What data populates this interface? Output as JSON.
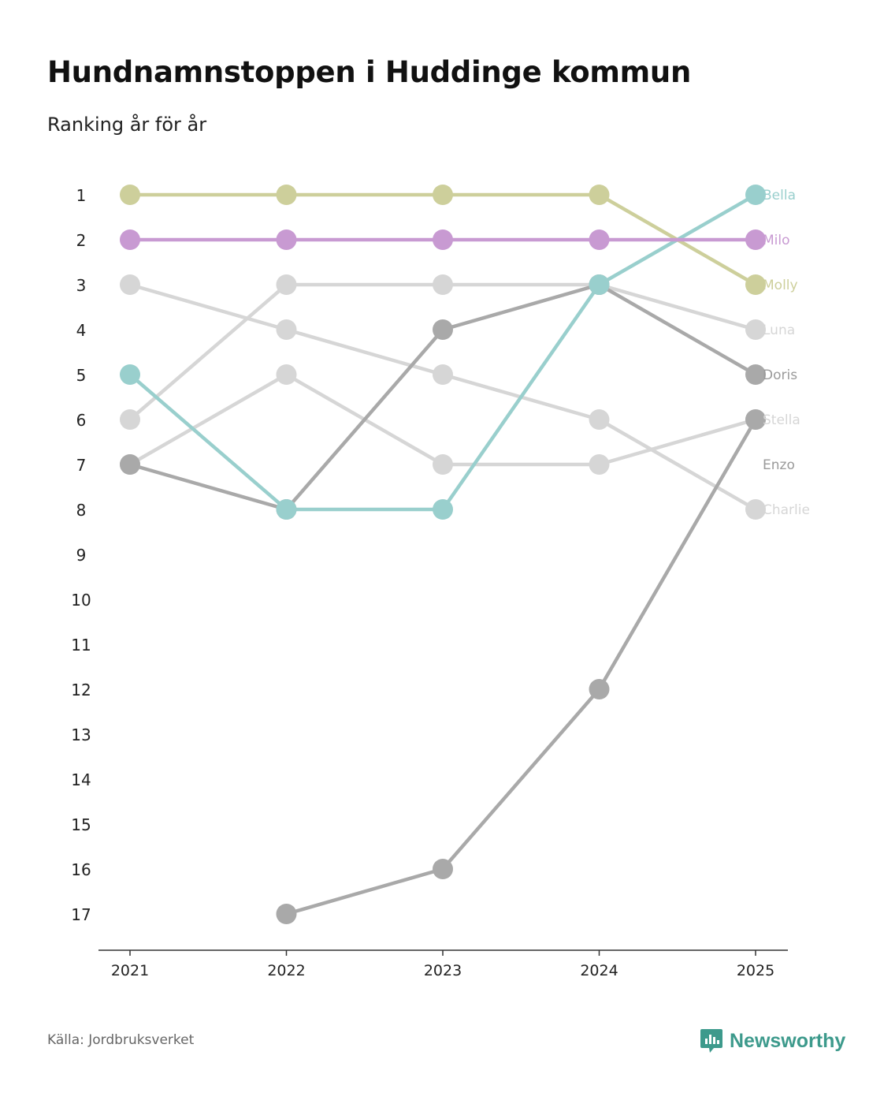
{
  "title": "Hundnamnstoppen i Huddinge kommun",
  "subtitle": "Ranking år för år",
  "source": "Källa: Jordbruksverket",
  "brand": {
    "name": "Newsworthy",
    "icon": "newsworthy-logo-icon",
    "color": "#3d9a8c"
  },
  "chart_data": {
    "type": "line",
    "subtype": "bump",
    "title": "Hundnamnstoppen i Huddinge kommun",
    "subtitle": "Ranking år för år",
    "x": [
      "2021",
      "2022",
      "2023",
      "2024",
      "2025"
    ],
    "y_ticks": [
      "1",
      "2",
      "3",
      "4",
      "5",
      "6",
      "7",
      "8",
      "9",
      "10",
      "11",
      "12",
      "13",
      "14",
      "15",
      "16",
      "17"
    ],
    "ylim": [
      1,
      17
    ],
    "y_inverted": true,
    "series": [
      {
        "name": "Charlie",
        "color": "#d6d6d6",
        "values": [
          3,
          4,
          5,
          6,
          8
        ]
      },
      {
        "name": "Stella",
        "color": "#d6d6d6",
        "values": [
          7,
          5,
          7,
          7,
          6
        ]
      },
      {
        "name": "Luna",
        "color": "#d6d6d6",
        "values": [
          6,
          3,
          3,
          3,
          4
        ]
      },
      {
        "name": "Enzo",
        "color": "#a9a9a9",
        "values": [
          null,
          17,
          16,
          12,
          6
        ]
      },
      {
        "name": "Doris",
        "color": "#a9a9a9",
        "values": [
          7,
          8,
          4,
          3,
          5
        ]
      },
      {
        "name": "Bella",
        "color": "#99cfcd",
        "values": [
          5,
          8,
          8,
          3,
          1
        ]
      },
      {
        "name": "Molly",
        "color": "#cdcf9b",
        "values": [
          1,
          1,
          1,
          1,
          3
        ]
      },
      {
        "name": "Milo",
        "color": "#c89ad2",
        "values": [
          2,
          2,
          2,
          2,
          2
        ]
      }
    ],
    "label_order": [
      "Bella",
      "Milo",
      "Molly",
      "Luna",
      "Doris",
      "Stella",
      "Enzo",
      "Charlie"
    ],
    "label_colors": {
      "Bella": "#99cfcd",
      "Milo": "#c89ad2",
      "Molly": "#cdcf9b",
      "Luna": "#d6d6d6",
      "Doris": "#9a9a9a",
      "Stella": "#d6d6d6",
      "Enzo": "#9a9a9a",
      "Charlie": "#d6d6d6"
    }
  }
}
